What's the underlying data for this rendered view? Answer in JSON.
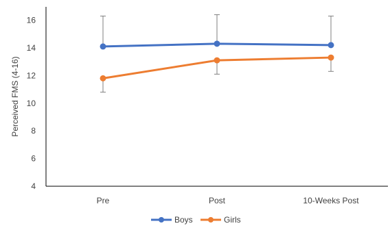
{
  "chart_data": {
    "type": "line",
    "title": "",
    "xlabel": "",
    "ylabel": "Perceived FMS (4-16)",
    "categories": [
      "Pre",
      "Post",
      "10-Weeks Post"
    ],
    "ylim": [
      4,
      16
    ],
    "yticks": [
      4,
      6,
      8,
      10,
      12,
      14,
      16
    ],
    "grid": false,
    "legend_position": "bottom",
    "series": [
      {
        "name": "Boys",
        "color": "#4472c4",
        "values": [
          14.1,
          14.3,
          14.2
        ],
        "error_plus": [
          2.2,
          2.1,
          2.1
        ],
        "error_minus": [
          0,
          0,
          0
        ]
      },
      {
        "name": "Girls",
        "color": "#ed7d31",
        "values": [
          11.8,
          13.1,
          13.3
        ],
        "error_plus": [
          0,
          0,
          0
        ],
        "error_minus": [
          1.0,
          1.0,
          1.0
        ]
      }
    ]
  }
}
